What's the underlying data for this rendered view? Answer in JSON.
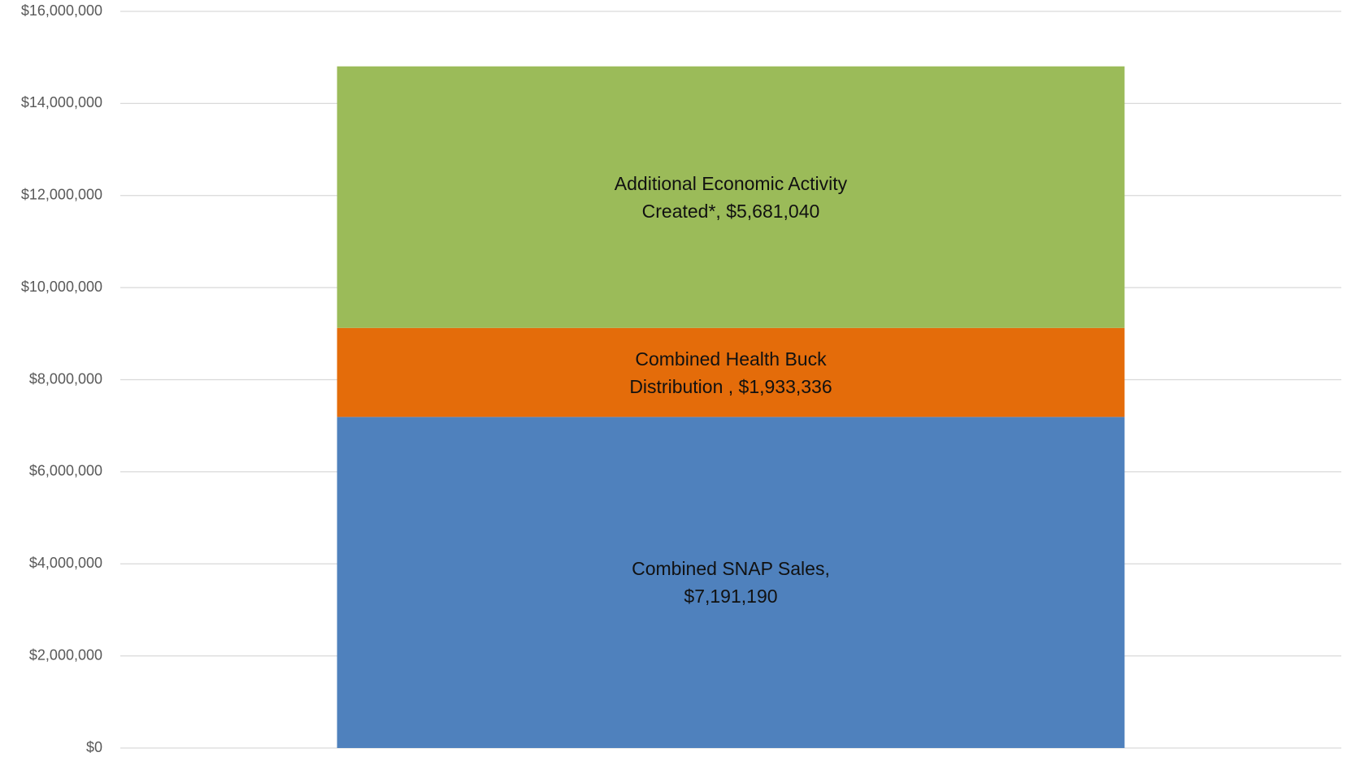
{
  "chart_data": {
    "type": "stacked-bar",
    "categories": [
      null
    ],
    "series": [
      {
        "color": "#4f81bd",
        "values": [
          7191190
        ],
        "value_labels": [
          "Combined SNAP Sales, $7,191,190"
        ]
      },
      {
        "color": "#e46c0a",
        "values": [
          1933336
        ],
        "value_labels": [
          "Combined Health Buck Distribution , $1,933,336"
        ]
      },
      {
        "color": "#9bbb59",
        "values": [
          5681040
        ],
        "value_labels": [
          "Additional Economic Activity Created*, $5,681,040"
        ]
      }
    ],
    "ylim": [
      0,
      16000000
    ],
    "yticks": [
      {
        "value": 0,
        "label": "$0"
      },
      {
        "value": 2000000,
        "label": "$2,000,000"
      },
      {
        "value": 4000000,
        "label": "$4,000,000"
      },
      {
        "value": 6000000,
        "label": "$6,000,000"
      },
      {
        "value": 8000000,
        "label": "$8,000,000"
      },
      {
        "value": 10000000,
        "label": "$10,000,000"
      },
      {
        "value": 12000000,
        "label": "$12,000,000"
      },
      {
        "value": 14000000,
        "label": "$14,000,000"
      },
      {
        "value": 16000000,
        "label": "$16,000,000"
      }
    ],
    "grid": true
  }
}
